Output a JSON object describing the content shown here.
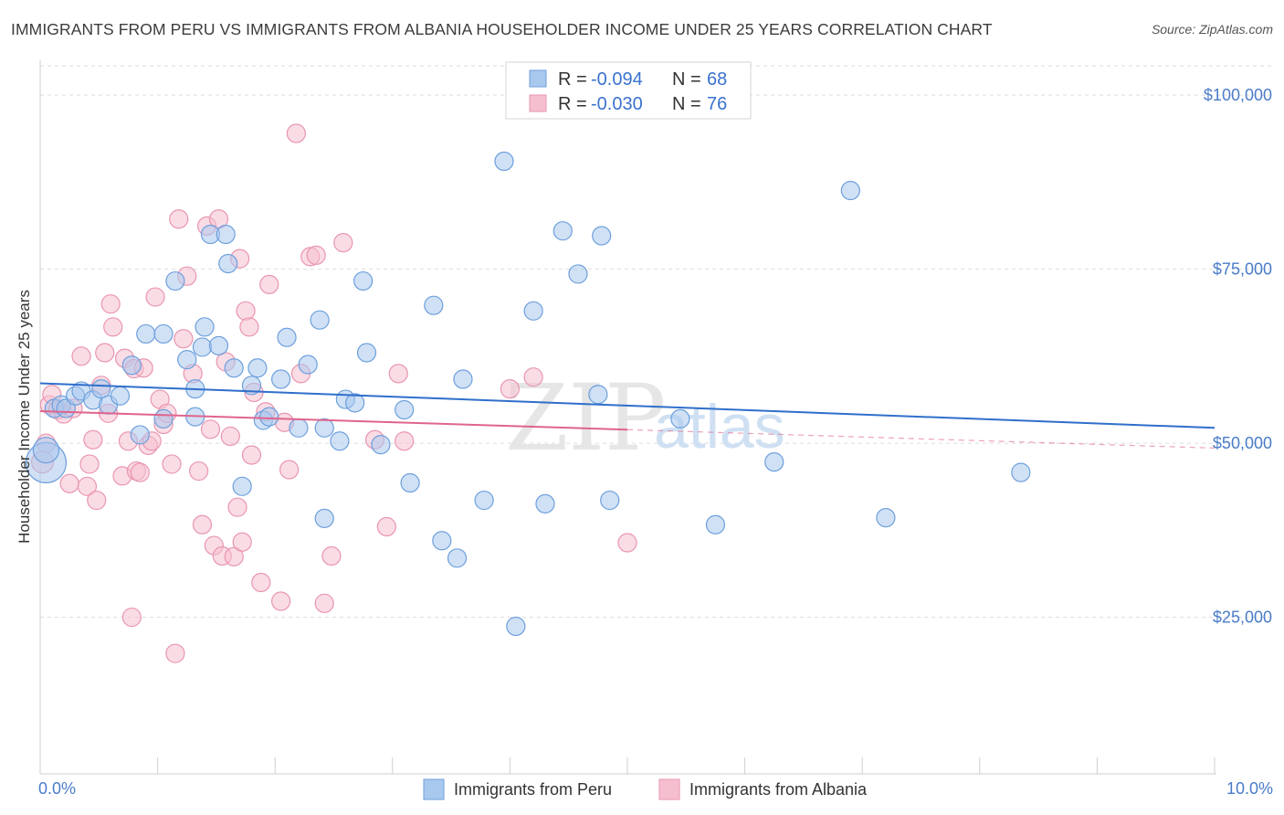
{
  "title": "IMMIGRANTS FROM PERU VS IMMIGRANTS FROM ALBANIA HOUSEHOLDER INCOME UNDER 25 YEARS CORRELATION CHART",
  "source": "Source: ZipAtlas.com",
  "watermark": {
    "zip": "ZIP",
    "atlas": "atlas"
  },
  "colors": {
    "peru_fill": "#a9c8ee",
    "peru_stroke": "#6d9fdc",
    "peru_line": "#2f6fcb",
    "albania_fill": "#f6bfd0",
    "albania_stroke": "#e995b0",
    "albania_line": "#e0648d",
    "tick_text": "#4a7cc9",
    "grid": "#dddddd"
  },
  "legend": {
    "rows": [
      {
        "r_label": "R =",
        "r_value": "-0.094",
        "n_label": "N =",
        "n_value": "68"
      },
      {
        "r_label": "R =",
        "r_value": "-0.030",
        "n_label": "N =",
        "n_value": "76"
      }
    ]
  },
  "chart_data": {
    "type": "scatter",
    "title": "IMMIGRANTS FROM PERU VS IMMIGRANTS FROM ALBANIA HOUSEHOLDER INCOME UNDER 25 YEARS CORRELATION CHART",
    "xlabel": "",
    "ylabel": "Householder Income Under 25 years",
    "xlim": [
      0,
      10
    ],
    "ylim": [
      2500,
      105000
    ],
    "x_tick_labels": [
      "0.0%",
      "10.0%"
    ],
    "y_ticks": [
      25000,
      50000,
      75000,
      100000
    ],
    "y_tick_labels": [
      "$25,000",
      "$50,000",
      "$75,000",
      "$100,000"
    ],
    "series": [
      {
        "name": "Immigrants from Peru",
        "color": "#a9c8ee",
        "trend": {
          "x": [
            0.0,
            10.0
          ],
          "y": [
            58600,
            52200
          ],
          "dashed_from": null
        },
        "points": [
          [
            0.05,
            47200,
            22
          ],
          [
            0.05,
            49000,
            14
          ],
          [
            0.12,
            55000,
            10
          ],
          [
            0.18,
            55500,
            10
          ],
          [
            0.22,
            55000,
            10
          ],
          [
            0.3,
            56800,
            10
          ],
          [
            0.35,
            57500,
            10
          ],
          [
            0.45,
            56200,
            10
          ],
          [
            0.52,
            57800,
            10
          ],
          [
            0.58,
            55500,
            10
          ],
          [
            0.68,
            56800,
            10
          ],
          [
            0.78,
            61200,
            10
          ],
          [
            0.85,
            51200,
            10
          ],
          [
            0.9,
            65700,
            10
          ],
          [
            1.05,
            65700,
            10
          ],
          [
            1.05,
            53500,
            10
          ],
          [
            1.15,
            73300,
            10
          ],
          [
            1.25,
            62000,
            10
          ],
          [
            1.32,
            57800,
            10
          ],
          [
            1.32,
            53800,
            10
          ],
          [
            1.38,
            63800,
            10
          ],
          [
            1.4,
            66700,
            10
          ],
          [
            1.45,
            80000,
            10
          ],
          [
            1.52,
            64000,
            10
          ],
          [
            1.58,
            80000,
            10
          ],
          [
            1.6,
            75800,
            10
          ],
          [
            1.65,
            60800,
            10
          ],
          [
            1.72,
            43800,
            10
          ],
          [
            1.8,
            58300,
            10
          ],
          [
            1.85,
            60800,
            10
          ],
          [
            1.9,
            53300,
            10
          ],
          [
            1.95,
            53800,
            10
          ],
          [
            2.05,
            59200,
            10
          ],
          [
            2.1,
            65200,
            10
          ],
          [
            2.2,
            52200,
            10
          ],
          [
            2.28,
            61300,
            10
          ],
          [
            2.38,
            67700,
            10
          ],
          [
            2.42,
            52200,
            10
          ],
          [
            2.42,
            39200,
            10
          ],
          [
            2.55,
            50300,
            10
          ],
          [
            2.6,
            56300,
            10
          ],
          [
            2.68,
            55800,
            10
          ],
          [
            2.75,
            73300,
            10
          ],
          [
            2.78,
            63000,
            10
          ],
          [
            2.9,
            49800,
            10
          ],
          [
            3.1,
            54800,
            10
          ],
          [
            3.15,
            44300,
            10
          ],
          [
            3.35,
            69800,
            10
          ],
          [
            3.42,
            36000,
            10
          ],
          [
            3.55,
            33500,
            10
          ],
          [
            3.6,
            59200,
            10
          ],
          [
            3.78,
            41800,
            10
          ],
          [
            3.95,
            90500,
            10
          ],
          [
            4.05,
            23700,
            10
          ],
          [
            4.2,
            69000,
            10
          ],
          [
            4.3,
            41300,
            10
          ],
          [
            4.45,
            80500,
            10
          ],
          [
            4.58,
            74300,
            10
          ],
          [
            4.75,
            57000,
            10
          ],
          [
            4.78,
            79800,
            10
          ],
          [
            4.85,
            41800,
            10
          ],
          [
            5.45,
            53500,
            10
          ],
          [
            5.75,
            38300,
            10
          ],
          [
            6.25,
            47300,
            10
          ],
          [
            6.9,
            86300,
            10
          ],
          [
            7.2,
            39300,
            10
          ],
          [
            8.35,
            45800,
            10
          ]
        ]
      },
      {
        "name": "Immigrants from Albania",
        "color": "#f6bfd0",
        "trend": {
          "x": [
            0.0,
            10.0
          ],
          "y": [
            54600,
            49300
          ],
          "dashed_from": 5.0
        },
        "points": [
          [
            0.02,
            47300,
            12
          ],
          [
            0.05,
            50000,
            10
          ],
          [
            0.08,
            55500,
            10
          ],
          [
            0.1,
            57000,
            10
          ],
          [
            0.15,
            54800,
            10
          ],
          [
            0.2,
            54200,
            10
          ],
          [
            0.25,
            44200,
            10
          ],
          [
            0.28,
            55000,
            10
          ],
          [
            0.35,
            62500,
            10
          ],
          [
            0.4,
            43800,
            10
          ],
          [
            0.42,
            47000,
            10
          ],
          [
            0.45,
            50500,
            10
          ],
          [
            0.48,
            41800,
            10
          ],
          [
            0.52,
            58300,
            10
          ],
          [
            0.55,
            63000,
            10
          ],
          [
            0.58,
            54300,
            10
          ],
          [
            0.6,
            70000,
            10
          ],
          [
            0.62,
            66700,
            10
          ],
          [
            0.7,
            45300,
            10
          ],
          [
            0.72,
            62200,
            10
          ],
          [
            0.75,
            50300,
            10
          ],
          [
            0.78,
            25000,
            10
          ],
          [
            0.8,
            60700,
            10
          ],
          [
            0.82,
            46000,
            10
          ],
          [
            0.85,
            45800,
            10
          ],
          [
            0.88,
            60800,
            10
          ],
          [
            0.92,
            49700,
            10
          ],
          [
            0.95,
            50300,
            10
          ],
          [
            0.98,
            71000,
            10
          ],
          [
            1.02,
            56300,
            10
          ],
          [
            1.05,
            52700,
            10
          ],
          [
            1.08,
            54300,
            10
          ],
          [
            1.12,
            47000,
            10
          ],
          [
            1.15,
            19800,
            10
          ],
          [
            1.18,
            82200,
            10
          ],
          [
            1.22,
            65000,
            10
          ],
          [
            1.25,
            74000,
            10
          ],
          [
            1.3,
            60000,
            10
          ],
          [
            1.35,
            46000,
            10
          ],
          [
            1.38,
            38300,
            10
          ],
          [
            1.42,
            81200,
            10
          ],
          [
            1.45,
            52000,
            10
          ],
          [
            1.48,
            35300,
            10
          ],
          [
            1.52,
            82200,
            10
          ],
          [
            1.55,
            33800,
            10
          ],
          [
            1.58,
            61700,
            10
          ],
          [
            1.62,
            51000,
            10
          ],
          [
            1.65,
            33700,
            10
          ],
          [
            1.68,
            40800,
            10
          ],
          [
            1.7,
            76500,
            10
          ],
          [
            1.72,
            35800,
            10
          ],
          [
            1.75,
            69000,
            10
          ],
          [
            1.78,
            66700,
            10
          ],
          [
            1.8,
            48300,
            10
          ],
          [
            1.82,
            57300,
            10
          ],
          [
            1.88,
            30000,
            10
          ],
          [
            1.92,
            54500,
            10
          ],
          [
            1.95,
            72800,
            10
          ],
          [
            2.05,
            27300,
            10
          ],
          [
            2.08,
            53000,
            10
          ],
          [
            2.12,
            46200,
            10
          ],
          [
            2.18,
            94500,
            10
          ],
          [
            2.22,
            60000,
            10
          ],
          [
            2.3,
            76800,
            10
          ],
          [
            2.35,
            77000,
            10
          ],
          [
            2.42,
            27000,
            10
          ],
          [
            2.48,
            33800,
            10
          ],
          [
            2.58,
            78800,
            10
          ],
          [
            2.85,
            50500,
            10
          ],
          [
            2.95,
            38000,
            10
          ],
          [
            3.05,
            60000,
            10
          ],
          [
            3.1,
            50300,
            10
          ],
          [
            4.0,
            57800,
            10
          ],
          [
            4.2,
            59500,
            10
          ],
          [
            5.0,
            35700,
            10
          ]
        ]
      }
    ],
    "legend_position": "top-center",
    "grid": true
  },
  "bottom_legend": [
    {
      "label": "Immigrants from Peru"
    },
    {
      "label": "Immigrants from Albania"
    }
  ]
}
